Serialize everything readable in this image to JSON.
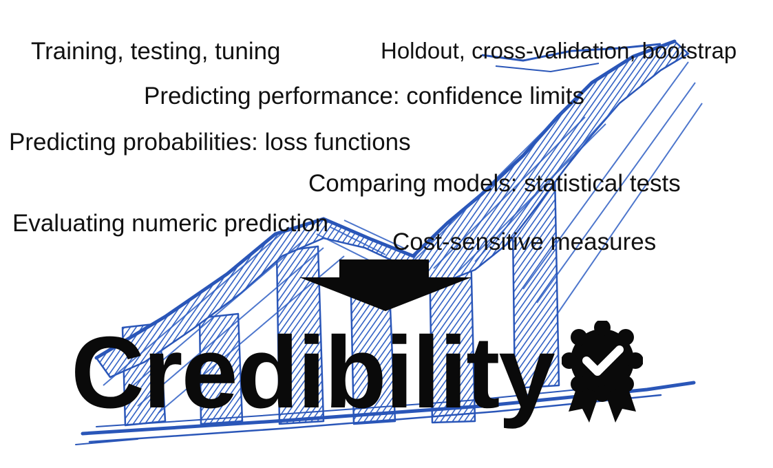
{
  "topics": [
    "Training, testing, tuning",
    "Holdout, cross-validation, bootstrap",
    "Predicting performance: confidence limits",
    "Predicting probabilities: loss functions",
    "Comparing models: statistical tests",
    "Evaluating numeric prediction",
    "Cost-sensitive measures"
  ],
  "headline": "Credibility",
  "icons": {
    "background": "sketched-bar-chart-icon",
    "arrow": "arrow-down-icon",
    "badge": "award-ribbon-check-icon"
  },
  "colors": {
    "sketch_blue": "#2f5fc4",
    "text": "#111111",
    "headline": "#0a0a0a"
  }
}
